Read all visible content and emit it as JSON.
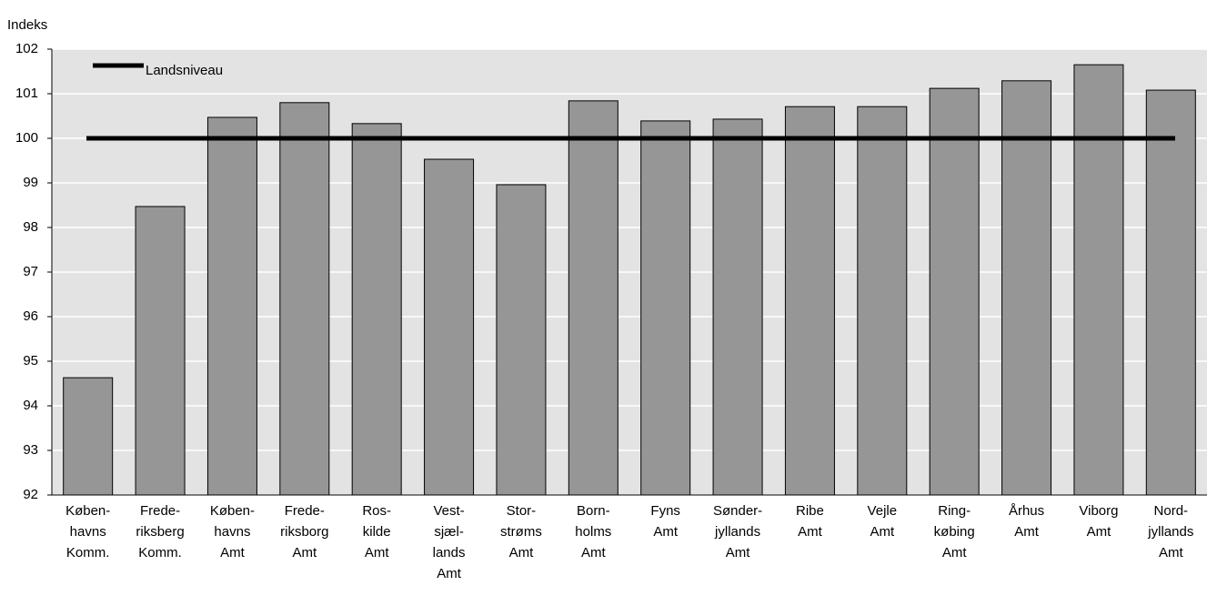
{
  "chart_data": {
    "type": "bar",
    "y_label": "Indeks",
    "categories": [
      "Køben-\nhavns\nKomm.",
      "Frede-\nriksberg\nKomm.",
      "Køben-\nhavns\nAmt",
      "Frede-\nriksborg\nAmt",
      "Ros-\nkilde\nAmt",
      "Vest-\nsjæl-\nlands\nAmt",
      "Stor-\nstrøms\nAmt",
      "Born-\nholms\nAmt",
      "Fyns\nAmt",
      "Sønder-\njyllands\nAmt",
      "Ribe\nAmt",
      "Vejle\nAmt",
      "Ring-\nkøbing\nAmt",
      "Århus\nAmt",
      "Viborg\nAmt",
      "Nord-\njyllands\nAmt"
    ],
    "values": [
      94.63,
      98.47,
      100.47,
      100.8,
      100.33,
      99.53,
      98.96,
      100.84,
      100.39,
      100.43,
      100.71,
      100.71,
      101.12,
      101.29,
      101.65,
      101.08
    ],
    "color": "#969696",
    "reference_line": {
      "name": "Landsniveau",
      "value": 100,
      "color": "#000000"
    },
    "ylim": [
      92,
      102
    ],
    "yticks": [
      92,
      93,
      94,
      95,
      96,
      97,
      98,
      99,
      100,
      101,
      102
    ],
    "grid": true,
    "legend": "top-left"
  }
}
